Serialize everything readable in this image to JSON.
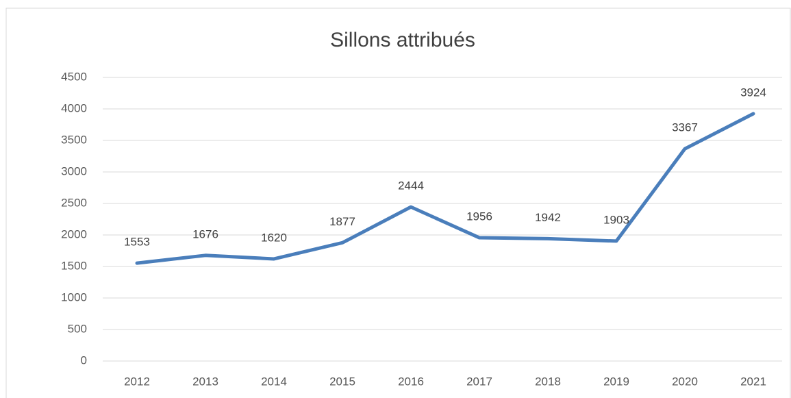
{
  "chart_data": {
    "type": "line",
    "title": "Sillons attribués",
    "categories": [
      "2012",
      "2013",
      "2014",
      "2015",
      "2016",
      "2017",
      "2018",
      "2019",
      "2020",
      "2021"
    ],
    "values": [
      1553,
      1676,
      1620,
      1877,
      2444,
      1956,
      1942,
      1903,
      3367,
      3924
    ],
    "color": "#4a7ebb",
    "ylim": [
      0,
      4500
    ],
    "yticks": [
      0,
      500,
      1000,
      1500,
      2000,
      2500,
      3000,
      3500,
      4000,
      4500
    ],
    "grid": true
  }
}
